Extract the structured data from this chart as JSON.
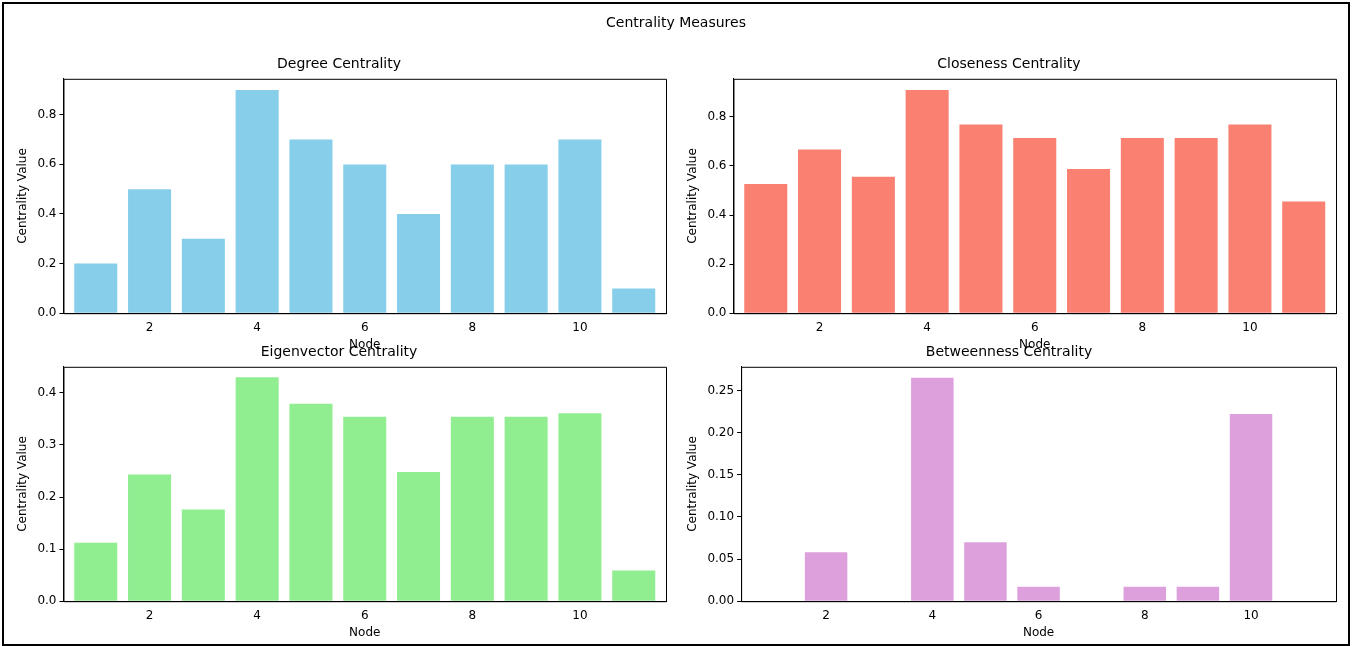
{
  "chart_data": [
    {
      "type": "other",
      "title": "Centrality Measures"
    },
    {
      "type": "bar",
      "title": "Degree Centrality",
      "xlabel": "Node",
      "ylabel": "Centrality Value",
      "x": [
        1,
        2,
        3,
        4,
        5,
        6,
        7,
        8,
        9,
        10,
        11
      ],
      "values": [
        0.2,
        0.5,
        0.3,
        0.9,
        0.7,
        0.6,
        0.4,
        0.6,
        0.6,
        0.7,
        0.1
      ],
      "color": "#87ceeb",
      "xlim": [
        0.4,
        11.6
      ],
      "xticks": [
        2,
        4,
        6,
        8,
        10
      ],
      "ylim": [
        0,
        0.945
      ],
      "yticks": [
        {
          "value": 0,
          "label": "0.0"
        },
        0.2,
        0.4,
        0.6,
        0.8
      ],
      "grid": false
    },
    {
      "type": "bar",
      "title": "Closeness Centrality",
      "xlabel": "Node",
      "ylabel": "Centrality Value",
      "x": [
        1,
        2,
        3,
        4,
        5,
        6,
        7,
        8,
        9,
        10,
        11
      ],
      "values": [
        0.526,
        0.667,
        0.556,
        0.909,
        0.769,
        0.714,
        0.588,
        0.714,
        0.714,
        0.769,
        0.455
      ],
      "color": "#fa8072",
      "xlim": [
        0.4,
        11.6
      ],
      "xticks": [
        2,
        4,
        6,
        8,
        10
      ],
      "ylim": [
        0,
        0.955
      ],
      "yticks": [
        {
          "value": 0,
          "label": "0.0"
        },
        0.2,
        0.4,
        0.6,
        0.8
      ],
      "grid": false
    },
    {
      "type": "bar",
      "title": "Eigenvector Centrality",
      "xlabel": "Node",
      "ylabel": "Centrality Value",
      "x": [
        1,
        2,
        3,
        4,
        5,
        6,
        7,
        8,
        9,
        10,
        11
      ],
      "values": [
        0.112,
        0.243,
        0.176,
        0.43,
        0.379,
        0.354,
        0.248,
        0.354,
        0.354,
        0.361,
        0.059
      ],
      "color": "#90ee90",
      "xlim": [
        0.4,
        11.6
      ],
      "xticks": [
        2,
        4,
        6,
        8,
        10
      ],
      "ylim": [
        0,
        0.45
      ],
      "yticks": [
        {
          "value": 0,
          "label": "0.0"
        },
        0.1,
        0.2,
        0.3,
        0.4
      ],
      "grid": false
    },
    {
      "type": "bar",
      "title": "Betweenness Centrality",
      "xlabel": "Node",
      "ylabel": "Centrality Value",
      "x": [
        1,
        2,
        3,
        4,
        5,
        6,
        7,
        8,
        9,
        10,
        11
      ],
      "values": [
        0,
        0.058,
        0,
        0.265,
        0.07,
        0.017,
        0,
        0.017,
        0.017,
        0.222,
        0
      ],
      "color": "#dda0dd",
      "xlim": [
        0.4,
        11.6
      ],
      "xticks": [
        2,
        4,
        6,
        8,
        10
      ],
      "ylim": [
        0,
        0.278
      ],
      "yticks": [
        {
          "value": 0,
          "label": "0.00"
        },
        {
          "value": 0.05,
          "label": "0.05"
        },
        {
          "value": 0.1,
          "label": "0.10"
        },
        {
          "value": 0.15,
          "label": "0.15"
        },
        {
          "value": 0.2,
          "label": "0.20"
        },
        {
          "value": 0.25,
          "label": "0.25"
        }
      ],
      "grid": false
    }
  ]
}
